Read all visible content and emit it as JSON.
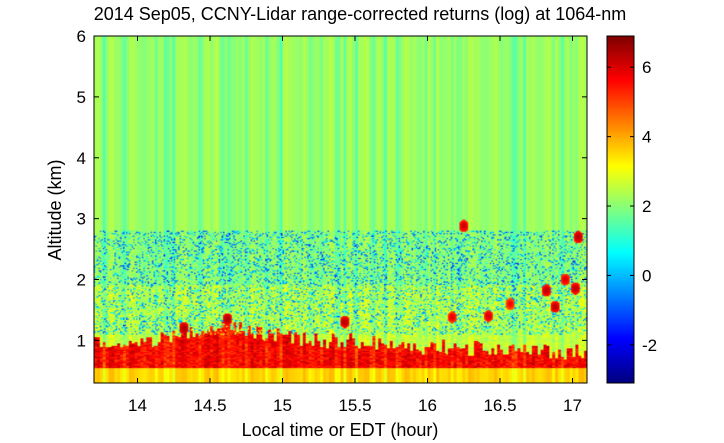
{
  "chart_data": {
    "type": "heatmap",
    "title": "2014 Sep05, CCNY-Lidar range-corrected returns (log) at 1064-nm",
    "xlabel": "Local time or EDT (hour)",
    "ylabel": "Altitude (km)",
    "xlim": [
      13.7,
      17.1
    ],
    "ylim": [
      0.3,
      6.0
    ],
    "x_ticks": [
      14,
      14.5,
      15,
      15.5,
      16,
      16.5,
      17
    ],
    "x_tick_labels": [
      "14",
      "14.5",
      "15",
      "15.5",
      "16",
      "16.5",
      "17"
    ],
    "y_ticks": [
      1,
      2,
      3,
      4,
      5,
      6
    ],
    "y_tick_labels": [
      "1",
      "2",
      "3",
      "4",
      "5",
      "6"
    ],
    "colorbar": {
      "colormap": "jet",
      "clim": [
        -3.1,
        6.9
      ],
      "ticks": [
        -2,
        0,
        2,
        4,
        6
      ],
      "tick_labels": [
        "-2",
        "0",
        "2",
        "4",
        "6"
      ]
    },
    "grid": false,
    "description_values": {
      "free_troposphere_value": 2.2,
      "residual_layer_value": 2.6,
      "boundary_layer_top_km": [
        [
          13.7,
          0.95
        ],
        [
          14.0,
          0.95
        ],
        [
          14.3,
          1.1
        ],
        [
          14.6,
          1.25
        ],
        [
          14.9,
          1.1
        ],
        [
          15.2,
          1.0
        ],
        [
          15.5,
          1.0
        ],
        [
          15.8,
          0.9
        ],
        [
          16.1,
          0.9
        ],
        [
          16.4,
          0.85
        ],
        [
          16.7,
          0.85
        ],
        [
          17.05,
          0.8
        ]
      ],
      "noise_region_km": [
        1.1,
        2.8
      ],
      "cloud_patches": [
        {
          "time": 14.32,
          "alt": 1.2,
          "value": 6.5
        },
        {
          "time": 14.62,
          "alt": 1.35,
          "value": 6.5
        },
        {
          "time": 15.43,
          "alt": 1.3,
          "value": 6.4
        },
        {
          "time": 16.17,
          "alt": 1.38,
          "value": 5.9
        },
        {
          "time": 16.25,
          "alt": 2.88,
          "value": 6.2
        },
        {
          "time": 16.42,
          "alt": 1.4,
          "value": 6.1
        },
        {
          "time": 16.57,
          "alt": 1.6,
          "value": 5.7
        },
        {
          "time": 16.82,
          "alt": 1.82,
          "value": 6.3
        },
        {
          "time": 16.88,
          "alt": 1.55,
          "value": 6.3
        },
        {
          "time": 16.95,
          "alt": 2.0,
          "value": 6.0
        },
        {
          "time": 17.02,
          "alt": 1.85,
          "value": 6.3
        },
        {
          "time": 17.04,
          "alt": 2.7,
          "value": 6.4
        }
      ]
    }
  }
}
